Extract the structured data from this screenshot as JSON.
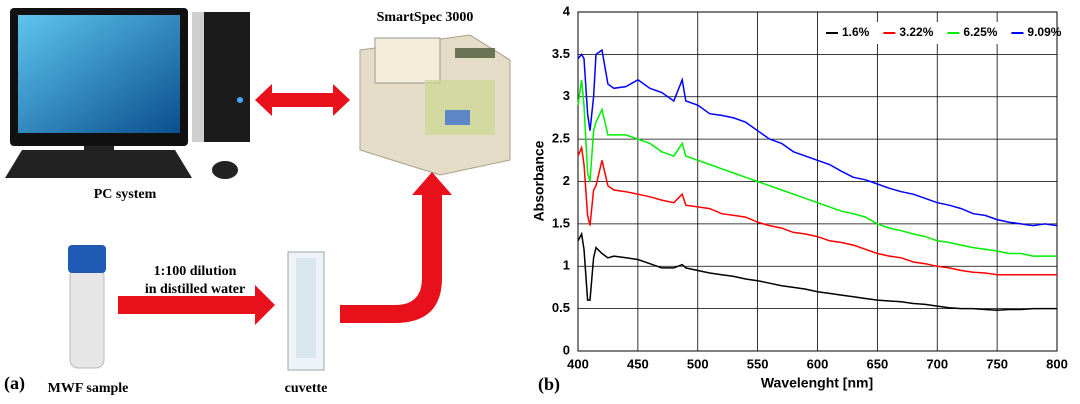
{
  "diagram": {
    "panel_label": "(a)",
    "pc_label": "PC system",
    "instrument_label": "SmartSpec 3000",
    "dilution_label": [
      "1:100 dilution",
      "in distilled water"
    ],
    "sample_label": "MWF sample",
    "cuvette_label": "cuvette"
  },
  "chart_data": {
    "type": "line",
    "panel_label": "(b)",
    "x_label": "Wavelenght [nm]",
    "y_label": "Absorbance",
    "x": [
      400,
      403,
      405,
      408,
      410,
      413,
      415,
      420,
      425,
      430,
      440,
      450,
      460,
      470,
      480,
      487,
      490,
      500,
      510,
      520,
      530,
      540,
      550,
      560,
      570,
      580,
      590,
      600,
      610,
      620,
      630,
      640,
      650,
      660,
      670,
      680,
      690,
      700,
      710,
      720,
      730,
      740,
      750,
      760,
      770,
      780,
      790,
      800
    ],
    "series": [
      {
        "name": "1.6%",
        "color": "#000000",
        "values": [
          1.3,
          1.38,
          1.2,
          0.6,
          0.6,
          1.1,
          1.22,
          1.15,
          1.1,
          1.12,
          1.1,
          1.08,
          1.03,
          0.98,
          0.98,
          1.02,
          0.98,
          0.95,
          0.92,
          0.9,
          0.88,
          0.85,
          0.83,
          0.8,
          0.77,
          0.75,
          0.73,
          0.7,
          0.68,
          0.66,
          0.64,
          0.62,
          0.6,
          0.59,
          0.58,
          0.56,
          0.55,
          0.53,
          0.51,
          0.5,
          0.5,
          0.49,
          0.48,
          0.49,
          0.49,
          0.5,
          0.5,
          0.5
        ]
      },
      {
        "name": "3.22%",
        "color": "#ff0000",
        "values": [
          2.3,
          2.4,
          2.2,
          1.6,
          1.48,
          1.9,
          1.95,
          2.25,
          1.95,
          1.9,
          1.88,
          1.85,
          1.82,
          1.78,
          1.75,
          1.85,
          1.72,
          1.7,
          1.68,
          1.62,
          1.6,
          1.58,
          1.52,
          1.48,
          1.45,
          1.4,
          1.38,
          1.35,
          1.3,
          1.28,
          1.25,
          1.2,
          1.15,
          1.12,
          1.1,
          1.05,
          1.03,
          1.0,
          0.98,
          0.95,
          0.93,
          0.92,
          0.9,
          0.9,
          0.9,
          0.9,
          0.9,
          0.9
        ]
      },
      {
        "name": "6.25%",
        "color": "#00ee00",
        "values": [
          2.9,
          3.2,
          2.9,
          2.1,
          2.0,
          2.6,
          2.7,
          2.85,
          2.55,
          2.55,
          2.55,
          2.5,
          2.45,
          2.35,
          2.3,
          2.45,
          2.3,
          2.25,
          2.2,
          2.15,
          2.1,
          2.05,
          2.0,
          1.95,
          1.9,
          1.85,
          1.8,
          1.75,
          1.7,
          1.65,
          1.62,
          1.58,
          1.5,
          1.45,
          1.42,
          1.38,
          1.35,
          1.3,
          1.28,
          1.25,
          1.22,
          1.2,
          1.18,
          1.15,
          1.15,
          1.12,
          1.12,
          1.12
        ]
      },
      {
        "name": "9.09%",
        "color": "#0000ff",
        "values": [
          3.45,
          3.5,
          3.45,
          2.8,
          2.6,
          3.0,
          3.5,
          3.55,
          3.15,
          3.1,
          3.12,
          3.2,
          3.1,
          3.05,
          2.95,
          3.2,
          2.95,
          2.9,
          2.8,
          2.78,
          2.75,
          2.7,
          2.6,
          2.5,
          2.45,
          2.35,
          2.3,
          2.25,
          2.2,
          2.12,
          2.05,
          2.02,
          1.97,
          1.92,
          1.88,
          1.85,
          1.8,
          1.75,
          1.72,
          1.68,
          1.62,
          1.6,
          1.55,
          1.52,
          1.5,
          1.48,
          1.5,
          1.48
        ]
      }
    ],
    "xlim": [
      400,
      800
    ],
    "xticks": [
      400,
      450,
      500,
      550,
      600,
      650,
      700,
      750,
      800
    ],
    "ylim": [
      0,
      4
    ],
    "yticks": [
      0,
      0.5,
      1,
      1.5,
      2,
      2.5,
      3,
      3.5,
      4
    ],
    "grid": true,
    "legend": "top-right"
  }
}
